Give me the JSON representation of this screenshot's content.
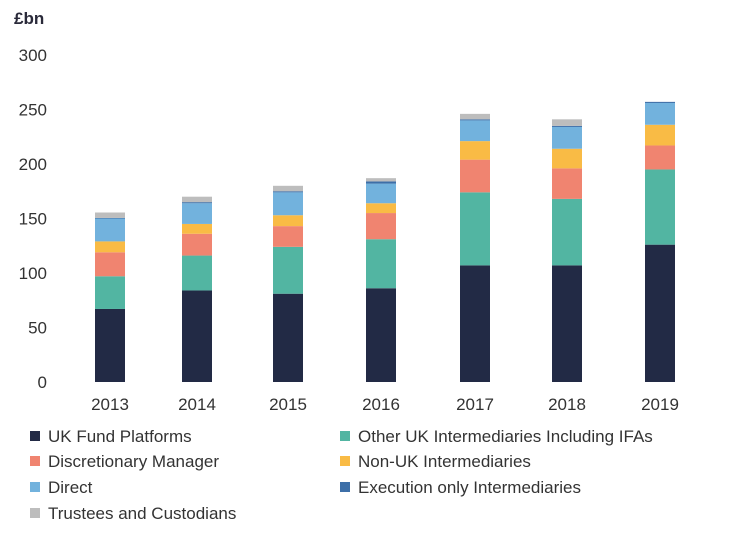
{
  "chart_data": {
    "type": "bar",
    "stacked": true,
    "unit_label": "£bn",
    "title": "",
    "xlabel": "",
    "ylabel": "£bn",
    "ylim": [
      0,
      300
    ],
    "yticks": [
      0,
      50,
      100,
      150,
      200,
      250,
      300
    ],
    "grid": false,
    "legend_position": "bottom",
    "categories": [
      "2013",
      "2014",
      "2015",
      "2016",
      "2017",
      "2018",
      "2019"
    ],
    "series": [
      {
        "name": "UK Fund Platforms",
        "color": "#222a45",
        "values": [
          67,
          84,
          81,
          86,
          107,
          107,
          126
        ]
      },
      {
        "name": "Other UK Intermediaries Including IFAs",
        "color": "#52b5a2",
        "values": [
          30,
          32,
          43,
          45,
          67,
          61,
          69
        ]
      },
      {
        "name": "Discretionary Manager",
        "color": "#f08470",
        "values": [
          22,
          20,
          19,
          24,
          30,
          28,
          22
        ]
      },
      {
        "name": "Non-UK Intermediaries",
        "color": "#f9bb45",
        "values": [
          10,
          9,
          10,
          9,
          17,
          18,
          19
        ]
      },
      {
        "name": "Direct",
        "color": "#72b2dd",
        "values": [
          21,
          19,
          21,
          18,
          19,
          20,
          20
        ]
      },
      {
        "name": "Execution only Intermediaries",
        "color": "#3d6fa8",
        "values": [
          0.5,
          1,
          1,
          2,
          1,
          1,
          1
        ]
      },
      {
        "name": "Trustees and Custodians",
        "color": "#bdbdbd",
        "values": [
          5,
          5,
          5,
          3,
          5,
          6,
          0
        ]
      }
    ]
  }
}
